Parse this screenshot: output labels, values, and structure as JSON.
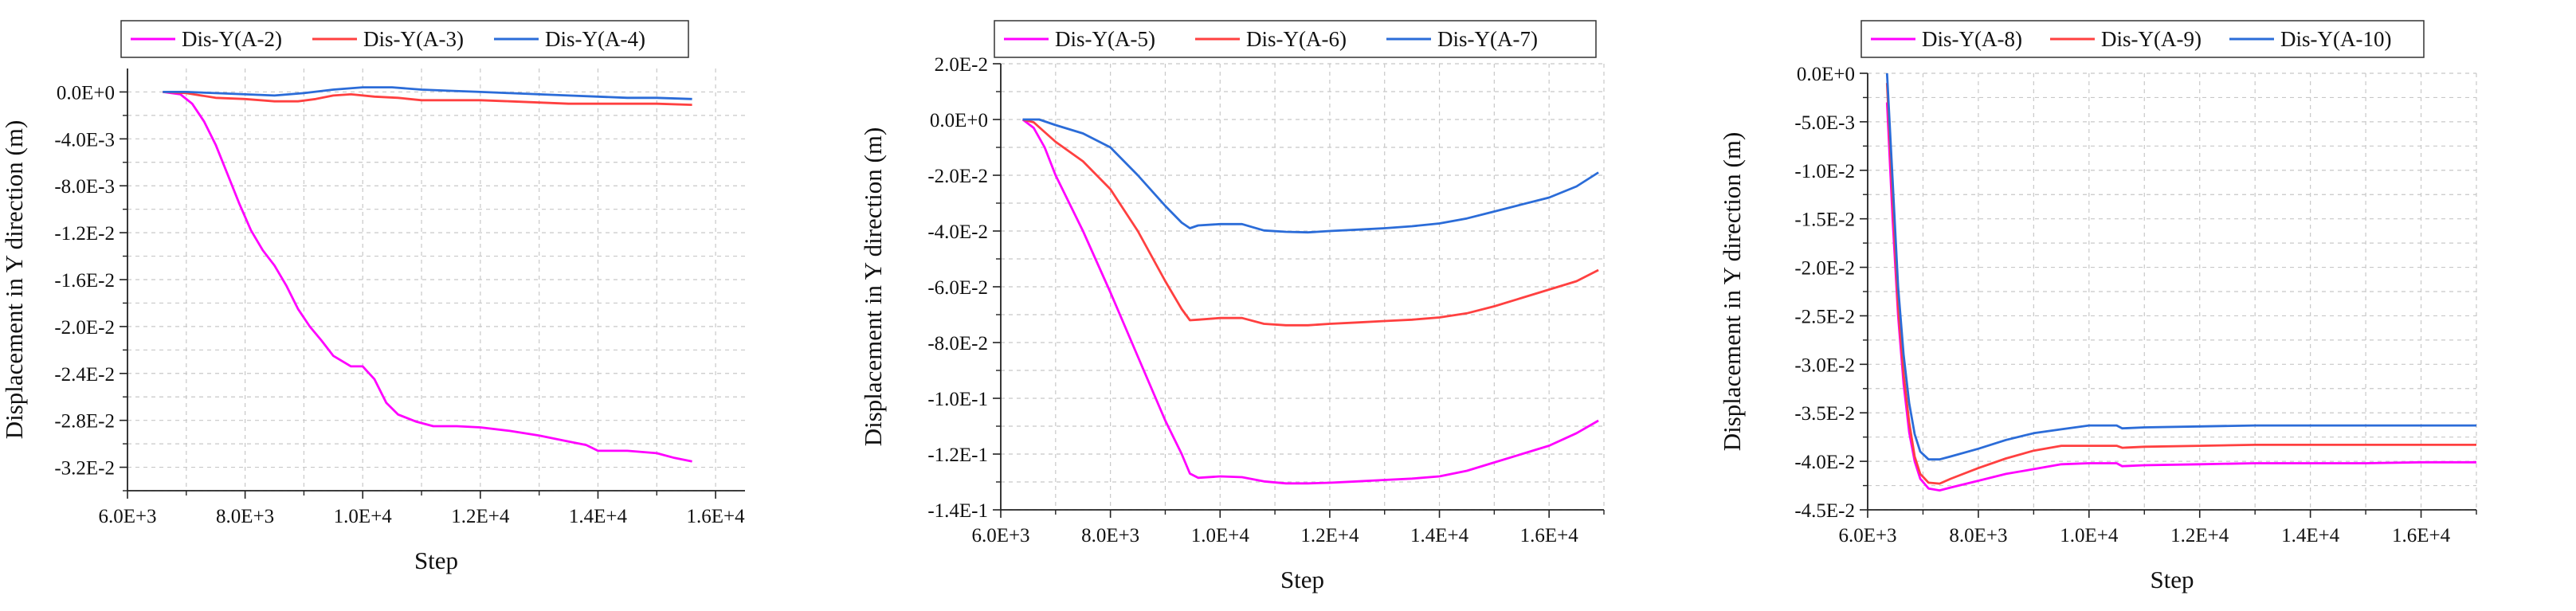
{
  "chart_data": [
    {
      "type": "line",
      "title": "",
      "xlabel": "Step",
      "ylabel": "Displacement in Y direction (m)",
      "xlim": [
        6000,
        16500
      ],
      "ylim": [
        -0.034,
        0.002
      ],
      "grid": true,
      "legend": "top",
      "xticks": [
        6000,
        8000,
        10000,
        12000,
        14000,
        16000
      ],
      "xtick_labels": [
        "6.0E+3",
        "8.0E+3",
        "1.0E+4",
        "1.2E+4",
        "1.4E+4",
        "1.6E+4"
      ],
      "yticks": [
        0,
        -0.004,
        -0.008,
        -0.012,
        -0.016,
        -0.02,
        -0.024,
        -0.028,
        -0.032
      ],
      "ytick_labels": [
        "0.0E+0",
        "-4.0E-3",
        "-8.0E-3",
        "-1.2E-2",
        "-1.6E-2",
        "-2.0E-2",
        "-2.4E-2",
        "-2.8E-2",
        "-3.2E-2"
      ],
      "series": [
        {
          "name": "Dis-Y(A-2)",
          "color": "#ff00ff",
          "x": [
            6600,
            6900,
            7100,
            7300,
            7500,
            7700,
            7900,
            8100,
            8300,
            8500,
            8700,
            8900,
            9100,
            9300,
            9500,
            9800,
            10000,
            10200,
            10400,
            10600,
            10900,
            11200,
            11600,
            12000,
            12500,
            13000,
            13500,
            13800,
            14000,
            14500,
            15000,
            15300,
            15600
          ],
          "y": [
            0,
            -0.0002,
            -0.001,
            -0.0025,
            -0.0045,
            -0.007,
            -0.0095,
            -0.0118,
            -0.0135,
            -0.0148,
            -0.0165,
            -0.0185,
            -0.02,
            -0.0212,
            -0.0225,
            -0.0234,
            -0.0234,
            -0.0245,
            -0.0265,
            -0.0275,
            -0.0281,
            -0.0285,
            -0.0285,
            -0.0286,
            -0.0289,
            -0.0293,
            -0.0298,
            -0.0301,
            -0.0306,
            -0.0306,
            -0.0308,
            -0.0312,
            -0.0315
          ]
        },
        {
          "name": "Dis-Y(A-3)",
          "color": "#ff4040",
          "x": [
            6600,
            7000,
            7500,
            8000,
            8500,
            8900,
            9200,
            9500,
            9800,
            10200,
            10600,
            11000,
            11500,
            12000,
            12500,
            13000,
            13500,
            14000,
            14500,
            15000,
            15600
          ],
          "y": [
            0,
            -0.0001,
            -0.0005,
            -0.0006,
            -0.0008,
            -0.0008,
            -0.0006,
            -0.0003,
            -0.0002,
            -0.0004,
            -0.0005,
            -0.0007,
            -0.0007,
            -0.0007,
            -0.0008,
            -0.0009,
            -0.001,
            -0.001,
            -0.001,
            -0.001,
            -0.0011
          ]
        },
        {
          "name": "Dis-Y(A-4)",
          "color": "#2b6cd8",
          "x": [
            6600,
            7000,
            7500,
            8000,
            8500,
            9000,
            9500,
            10000,
            10500,
            11000,
            11500,
            12000,
            12500,
            13000,
            13500,
            14000,
            14500,
            15000,
            15600
          ],
          "y": [
            0,
            0,
            -0.0001,
            -0.0002,
            -0.0003,
            -0.0001,
            0.0002,
            0.0004,
            0.0004,
            0.0002,
            0.0001,
            0,
            -0.0001,
            -0.0002,
            -0.0003,
            -0.0004,
            -0.0005,
            -0.0005,
            -0.0006
          ]
        }
      ]
    },
    {
      "type": "line",
      "title": "",
      "xlabel": "Step",
      "ylabel": "Displacement in Y direction (m)",
      "xlim": [
        6000,
        17000
      ],
      "ylim": [
        -0.14,
        0.02
      ],
      "grid": true,
      "legend": "top",
      "xticks": [
        6000,
        8000,
        10000,
        12000,
        14000,
        16000
      ],
      "xtick_labels": [
        "6.0E+3",
        "8.0E+3",
        "1.0E+4",
        "1.2E+4",
        "1.4E+4",
        "1.6E+4"
      ],
      "yticks": [
        0.02,
        0,
        -0.02,
        -0.04,
        -0.06,
        -0.08,
        -0.1,
        -0.12,
        -0.14
      ],
      "ytick_labels": [
        "2.0E-2",
        "0.0E+0",
        "-2.0E-2",
        "-4.0E-2",
        "-6.0E-2",
        "-8.0E-2",
        "-1.0E-1",
        "-1.2E-1",
        "-1.4E-1"
      ],
      "series": [
        {
          "name": "Dis-Y(A-5)",
          "color": "#ff00ff",
          "x": [
            6400,
            6600,
            6800,
            7000,
            7500,
            8000,
            8500,
            9000,
            9300,
            9450,
            9600,
            10000,
            10400,
            10800,
            11200,
            11600,
            12000,
            12500,
            13000,
            13500,
            14000,
            14500,
            15000,
            15500,
            16000,
            16500,
            16900
          ],
          "y": [
            0,
            -0.003,
            -0.01,
            -0.02,
            -0.04,
            -0.062,
            -0.085,
            -0.108,
            -0.12,
            -0.127,
            -0.1285,
            -0.128,
            -0.1283,
            -0.1298,
            -0.1305,
            -0.1305,
            -0.1303,
            -0.1298,
            -0.1293,
            -0.1288,
            -0.128,
            -0.126,
            -0.123,
            -0.12,
            -0.117,
            -0.1125,
            -0.108
          ]
        },
        {
          "name": "Dis-Y(A-6)",
          "color": "#ff4040",
          "x": [
            6400,
            6600,
            7000,
            7500,
            8000,
            8500,
            9000,
            9300,
            9450,
            9600,
            10000,
            10400,
            10800,
            11200,
            11600,
            12000,
            12500,
            13000,
            13500,
            14000,
            14500,
            15000,
            15500,
            16000,
            16500,
            16900
          ],
          "y": [
            0,
            -0.001,
            -0.008,
            -0.015,
            -0.025,
            -0.04,
            -0.058,
            -0.068,
            -0.072,
            -0.0718,
            -0.0712,
            -0.0712,
            -0.0733,
            -0.0738,
            -0.0738,
            -0.0733,
            -0.0728,
            -0.0723,
            -0.0718,
            -0.071,
            -0.0695,
            -0.067,
            -0.064,
            -0.061,
            -0.058,
            -0.054
          ]
        },
        {
          "name": "Dis-Y(A-7)",
          "color": "#2b6cd8",
          "x": [
            6400,
            6700,
            7000,
            7500,
            8000,
            8500,
            9000,
            9300,
            9450,
            9600,
            10000,
            10400,
            10800,
            11200,
            11600,
            12000,
            12500,
            13000,
            13500,
            14000,
            14500,
            15000,
            15500,
            16000,
            16500,
            16900
          ],
          "y": [
            0,
            0,
            -0.002,
            -0.005,
            -0.01,
            -0.02,
            -0.031,
            -0.037,
            -0.039,
            -0.038,
            -0.0375,
            -0.0375,
            -0.0398,
            -0.0403,
            -0.0405,
            -0.04,
            -0.0395,
            -0.039,
            -0.0383,
            -0.0373,
            -0.0355,
            -0.033,
            -0.0305,
            -0.028,
            -0.024,
            -0.019
          ]
        }
      ]
    },
    {
      "type": "line",
      "title": "",
      "xlabel": "Step",
      "ylabel": "Displacement in Y direction (m)",
      "xlim": [
        6000,
        17000
      ],
      "ylim": [
        -0.045,
        0.0
      ],
      "grid": true,
      "legend": "top",
      "xticks": [
        6000,
        8000,
        10000,
        12000,
        14000,
        16000
      ],
      "xtick_labels": [
        "6.0E+3",
        "8.0E+3",
        "1.0E+4",
        "1.2E+4",
        "1.4E+4",
        "1.6E+4"
      ],
      "yticks": [
        0,
        -0.005,
        -0.01,
        -0.015,
        -0.02,
        -0.025,
        -0.03,
        -0.035,
        -0.04,
        -0.045
      ],
      "ytick_labels": [
        "0.0E+0",
        "-5.0E-3",
        "-1.0E-2",
        "-1.5E-2",
        "-2.0E-2",
        "-2.5E-2",
        "-3.0E-2",
        "-3.5E-2",
        "-4.0E-2",
        "-4.5E-2"
      ],
      "series": [
        {
          "name": "Dis-Y(A-8)",
          "color": "#ff00ff",
          "x": [
            6350,
            6450,
            6550,
            6650,
            6750,
            6850,
            6950,
            7100,
            7300,
            7500,
            8000,
            8500,
            9000,
            9500,
            10000,
            10500,
            10600,
            11000,
            12000,
            13000,
            14000,
            15000,
            16000,
            17000
          ],
          "y": [
            -0.003,
            -0.015,
            -0.025,
            -0.032,
            -0.037,
            -0.04,
            -0.0418,
            -0.0428,
            -0.043,
            -0.0427,
            -0.042,
            -0.0413,
            -0.0408,
            -0.0403,
            -0.0402,
            -0.0402,
            -0.0405,
            -0.0404,
            -0.0403,
            -0.0402,
            -0.0402,
            -0.0402,
            -0.0401,
            -0.0401
          ]
        },
        {
          "name": "Dis-Y(A-9)",
          "color": "#ff4040",
          "x": [
            6350,
            6450,
            6550,
            6650,
            6750,
            6850,
            6950,
            7100,
            7300,
            7500,
            8000,
            8500,
            9000,
            9500,
            10000,
            10500,
            10600,
            11000,
            12000,
            13000,
            14000,
            15000,
            16000,
            17000
          ],
          "y": [
            -0.001,
            -0.013,
            -0.024,
            -0.031,
            -0.036,
            -0.0395,
            -0.0413,
            -0.0422,
            -0.0423,
            -0.0418,
            -0.0407,
            -0.0397,
            -0.0389,
            -0.0384,
            -0.0384,
            -0.0384,
            -0.0386,
            -0.0385,
            -0.0384,
            -0.0383,
            -0.0383,
            -0.0383,
            -0.0383,
            -0.0383
          ]
        },
        {
          "name": "Dis-Y(A-10)",
          "color": "#2b6cd8",
          "x": [
            6350,
            6450,
            6550,
            6650,
            6750,
            6850,
            6950,
            7100,
            7300,
            7500,
            8000,
            8500,
            9000,
            9500,
            10000,
            10500,
            10600,
            11000,
            12000,
            13000,
            14000,
            15000,
            16000,
            17000
          ],
          "y": [
            0,
            -0.011,
            -0.022,
            -0.029,
            -0.034,
            -0.0372,
            -0.039,
            -0.0398,
            -0.0398,
            -0.0395,
            -0.0387,
            -0.0378,
            -0.0371,
            -0.0367,
            -0.0363,
            -0.0363,
            -0.0366,
            -0.0365,
            -0.0364,
            -0.0363,
            -0.0363,
            -0.0363,
            -0.0363,
            -0.0363
          ]
        }
      ]
    }
  ]
}
